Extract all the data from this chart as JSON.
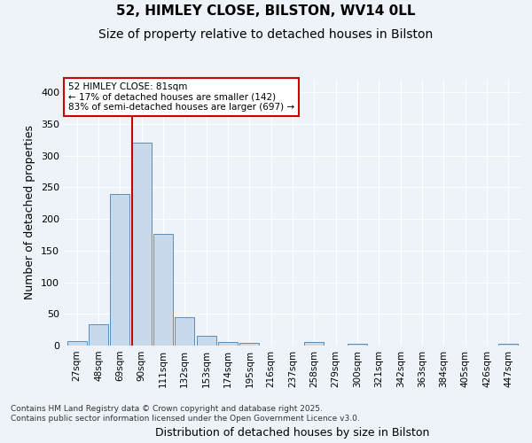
{
  "title1": "52, HIMLEY CLOSE, BILSTON, WV14 0LL",
  "title2": "Size of property relative to detached houses in Bilston",
  "xlabel": "Distribution of detached houses by size in Bilston",
  "ylabel": "Number of detached properties",
  "bin_labels": [
    "27sqm",
    "48sqm",
    "69sqm",
    "90sqm",
    "111sqm",
    "132sqm",
    "153sqm",
    "174sqm",
    "195sqm",
    "216sqm",
    "237sqm",
    "258sqm",
    "279sqm",
    "300sqm",
    "321sqm",
    "342sqm",
    "363sqm",
    "384sqm",
    "405sqm",
    "426sqm",
    "447sqm"
  ],
  "bar_values": [
    7,
    33,
    240,
    320,
    176,
    45,
    16,
    6,
    4,
    0,
    0,
    5,
    0,
    3,
    0,
    0,
    0,
    0,
    0,
    0,
    3
  ],
  "bar_color": "#c9d9ec",
  "bar_edge_color": "#5b8db8",
  "annotation_text": "52 HIMLEY CLOSE: 81sqm\n← 17% of detached houses are smaller (142)\n83% of semi-detached houses are larger (697) →",
  "annotation_box_color": "#ffffff",
  "annotation_box_edge": "#cc0000",
  "line_color": "#cc0000",
  "footer_line1": "Contains HM Land Registry data © Crown copyright and database right 2025.",
  "footer_line2": "Contains public sector information licensed under the Open Government Licence v3.0.",
  "ylim": [
    0,
    420
  ],
  "yticks": [
    0,
    50,
    100,
    150,
    200,
    250,
    300,
    350,
    400
  ],
  "background_color": "#eef2f9",
  "title_fontsize": 11,
  "subtitle_fontsize": 10,
  "prop_bin_low": 69,
  "prop_bin_high": 90,
  "prop_bin_low_idx": 2,
  "prop_value": 81
}
